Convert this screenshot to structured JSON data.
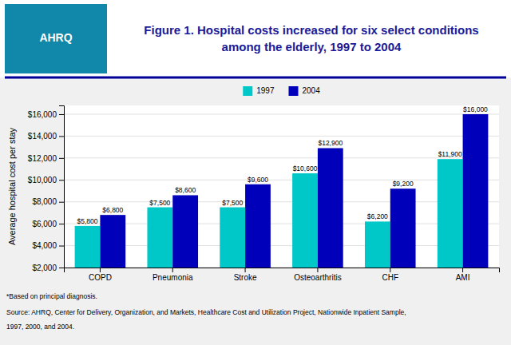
{
  "chart_data": {
    "type": "bar",
    "title": "Figure 1. Hospital costs increased for six select conditions among the elderly, 1997 to 2004",
    "ylabel": "Average hospital cost per stay",
    "categories": [
      "COPD",
      "Pneumonia",
      "Stroke",
      "Osteoarthritis",
      "CHF",
      "AMI"
    ],
    "series": [
      {
        "name": "1997",
        "color": "#00c8c8",
        "values": [
          5800,
          7500,
          7500,
          10600,
          6200,
          11900
        ],
        "value_labels": [
          "$5,800",
          "$7,500",
          "$7,500",
          "$10,600",
          "$6,200",
          "$11,900"
        ]
      },
      {
        "name": "2004",
        "color": "#0000bb",
        "values": [
          6800,
          8600,
          9600,
          12900,
          9200,
          16000
        ],
        "value_labels": [
          "$6,800",
          "$8,600",
          "$9,600",
          "$12,900",
          "$9,200",
          "$16,000"
        ]
      }
    ],
    "ylim": [
      2000,
      16800
    ],
    "yticks": [
      {
        "value": 2000,
        "label": "$2,000"
      },
      {
        "value": 4000,
        "label": "$4,000"
      },
      {
        "value": 6000,
        "label": "$6,000"
      },
      {
        "value": 8000,
        "label": "$8,000"
      },
      {
        "value": 10000,
        "label": "$10,000"
      },
      {
        "value": 12000,
        "label": "$12,000"
      },
      {
        "value": 14000,
        "label": "$14,000"
      },
      {
        "value": 16000,
        "label": "$16,000"
      }
    ],
    "grid": true,
    "legend": "top",
    "data_labels": true,
    "annotations": [
      "AHRQ",
      "*Based on principal diagnosis.",
      "Source: AHRQ, Center for Delivery, Organization, and Markets, Healthcare Cost and Utilization Project, Nationwide Inpatient Sample,",
      "1997, 2000, and 2004."
    ]
  }
}
